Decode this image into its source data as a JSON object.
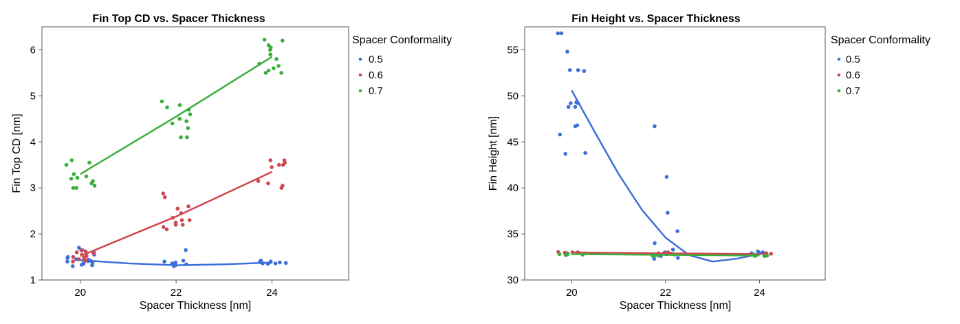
{
  "legend_title": "Spacer Conformality",
  "colors": {
    "0.5": "#3d6fd9",
    "0.6": "#d0464f",
    "0.7": "#3aad3a"
  },
  "chart_data": [
    {
      "type": "scatter",
      "title": "Fin Top CD vs. Spacer Thickness",
      "xlabel": "Spacer Thickness [nm]",
      "ylabel": "Fin Top CD [nm]",
      "xlim": [
        19.2,
        25.6
      ],
      "ylim": [
        1,
        6.5
      ],
      "xticks": [
        "20",
        "22",
        "24"
      ],
      "yticks": [
        "1",
        "2",
        "3",
        "4",
        "5",
        "6"
      ],
      "legend": {
        "title": "Spacer Conformality",
        "placement": "right",
        "entries": [
          "0.5",
          "0.6",
          "0.7"
        ]
      },
      "grid": false,
      "series": [
        {
          "name": "0.5",
          "points": {
            "20": [
              1.3,
              1.32,
              1.35,
              1.38,
              1.4,
              1.42,
              1.45,
              1.48,
              1.5,
              1.55,
              1.6,
              1.65,
              1.7,
              1.33,
              1.36,
              1.41,
              1.44
            ],
            "22": [
              1.3,
              1.32,
              1.34,
              1.36,
              1.38,
              1.4,
              1.42,
              1.65
            ],
            "24": [
              1.35,
              1.36,
              1.37,
              1.38,
              1.39,
              1.4,
              1.41,
              1.42,
              1.36,
              1.38,
              1.4
            ]
          },
          "fit": [
            [
              20,
              1.43
            ],
            [
              21,
              1.36
            ],
            [
              22,
              1.32
            ],
            [
              23,
              1.34
            ],
            [
              24,
              1.38
            ]
          ]
        },
        {
          "name": "0.6",
          "points": {
            "20": [
              1.4,
              1.45,
              1.5,
              1.55,
              1.6,
              1.65,
              1.42,
              1.48,
              1.52,
              1.58,
              1.62
            ],
            "22": [
              2.1,
              2.15,
              2.2,
              2.25,
              2.3,
              2.35,
              2.45,
              2.55,
              2.6,
              2.8,
              2.88,
              2.2,
              2.3
            ],
            "24": [
              3.0,
              3.05,
              3.1,
              3.15,
              3.5,
              3.55,
              3.6,
              3.5,
              3.45,
              3.6
            ]
          },
          "fit": [
            [
              20,
              1.52
            ],
            [
              22,
              2.38
            ],
            [
              24,
              3.35
            ]
          ]
        },
        {
          "name": "0.7",
          "points": {
            "20": [
              3.0,
              3.05,
              3.1,
              3.2,
              3.25,
              3.3,
              3.5,
              3.6,
              3.0,
              3.15,
              3.22,
              3.55
            ],
            "22": [
              4.1,
              4.3,
              4.4,
              4.5,
              4.6,
              4.7,
              4.8,
              4.88,
              4.45,
              4.5,
              4.1,
              4.75
            ],
            "24": [
              5.5,
              5.55,
              5.6,
              5.7,
              5.8,
              5.9,
              6.0,
              6.1,
              6.2,
              6.22,
              5.5,
              6.05,
              5.65
            ]
          },
          "fit": [
            [
              20,
              3.3
            ],
            [
              22,
              4.55
            ],
            [
              24,
              5.85
            ]
          ]
        }
      ]
    },
    {
      "type": "scatter",
      "title": "Fin Height vs. Spacer Thickness",
      "xlabel": "Spacer Thickness [nm]",
      "ylabel": "Fin Height [nm]",
      "xlim": [
        19.0,
        25.4
      ],
      "ylim": [
        30,
        57.5
      ],
      "xticks": [
        "20",
        "22",
        "24"
      ],
      "yticks": [
        "30",
        "35",
        "40",
        "45",
        "50",
        "55"
      ],
      "legend": {
        "title": "Spacer Conformality",
        "placement": "right",
        "entries": [
          "0.5",
          "0.6",
          "0.7"
        ]
      },
      "grid": false,
      "series": [
        {
          "name": "0.5",
          "points": {
            "20": [
              43.7,
              43.8,
              45.8,
              46.7,
              46.8,
              48.8,
              49.2,
              49.3,
              52.7,
              52.8,
              54.8,
              56.8,
              56.8,
              49.2,
              52.8,
              48.8
            ],
            "22": [
              32.3,
              32.4,
              32.6,
              32.8,
              33.0,
              33.3,
              34.0,
              35.3,
              37.3,
              41.2,
              46.7
            ],
            "24": [
              32.6,
              32.7,
              32.8,
              32.9,
              33.0,
              33.1,
              32.8,
              32.9
            ]
          },
          "fit": [
            [
              20,
              50.6
            ],
            [
              20.5,
              46.0
            ],
            [
              21,
              41.5
            ],
            [
              21.5,
              37.6
            ],
            [
              22,
              34.6
            ],
            [
              22.5,
              32.7
            ],
            [
              23,
              32.0
            ],
            [
              23.5,
              32.3
            ],
            [
              24,
              32.8
            ]
          ]
        },
        {
          "name": "0.6",
          "points": {
            "20": [
              32.9,
              33.0,
              33.0,
              32.95,
              33.05,
              32.9
            ],
            "22": [
              32.8,
              32.9,
              33.0,
              32.85
            ],
            "24": [
              32.7,
              32.8,
              32.9,
              32.85
            ]
          },
          "fit": [
            [
              20,
              33.0
            ],
            [
              24,
              32.8
            ]
          ]
        },
        {
          "name": "0.7",
          "points": {
            "20": [
              32.7,
              32.8,
              32.85,
              32.75,
              32.8
            ],
            "22": [
              32.6,
              32.7,
              32.75,
              32.65
            ],
            "24": [
              32.6,
              32.65,
              32.7,
              32.6
            ]
          },
          "fit": [
            [
              20,
              32.8
            ],
            [
              24,
              32.65
            ]
          ]
        }
      ]
    }
  ]
}
